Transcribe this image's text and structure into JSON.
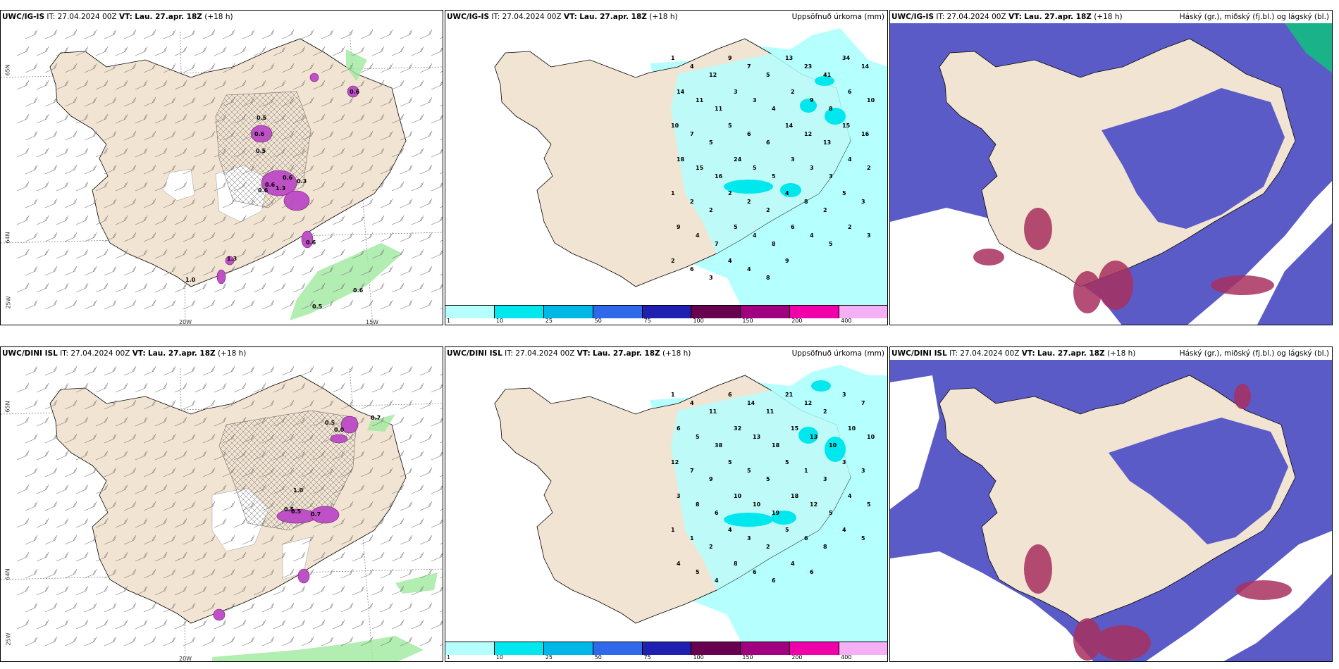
{
  "rows": [
    {
      "model": "UWC/IG-IS",
      "it_label": "IT:",
      "it_value": "27.04.2024 00Z",
      "vt_label": "VT:",
      "vt_value": "Lau. 27.apr. 18Z",
      "lead": "(+18 h)"
    },
    {
      "model": "UWC/DINI ISL",
      "it_label": "IT:",
      "it_value": "27.04.2024 00Z",
      "vt_label": "VT:",
      "vt_value": "Lau. 27.apr. 18Z",
      "lead": "(+18 h)"
    }
  ],
  "panel_titles": {
    "precip": "Uppsöfnuð úrkoma (mm)",
    "cloud": "Háský (gr.), miðský (fj.bl.) og lágský (bl.)"
  },
  "axis_labels": {
    "w20": "20W",
    "w15": "15W",
    "n65": "65N",
    "n64": "64N",
    "w25": "25W"
  },
  "colorbar": {
    "ticks": [
      "1",
      "10",
      "25",
      "50",
      "75",
      "100",
      "150",
      "200",
      "400"
    ],
    "colors": [
      "#b5ffff",
      "#00e8ee",
      "#00b8e8",
      "#2f68e8",
      "#2020b0",
      "#680050",
      "#a00080",
      "#f000a8",
      "#f5b0f5"
    ]
  },
  "precip_values_top": [
    "1",
    "4",
    "12",
    "9",
    "7",
    "5",
    "13",
    "23",
    "41",
    "34",
    "14",
    "14",
    "11",
    "11",
    "3",
    "3",
    "4",
    "2",
    "9",
    "8",
    "6",
    "10",
    "10",
    "7",
    "5",
    "5",
    "6",
    "6",
    "14",
    "12",
    "13",
    "15",
    "16",
    "18",
    "15",
    "16",
    "24",
    "5",
    "5",
    "3",
    "3",
    "3",
    "4",
    "2",
    "1",
    "2",
    "2",
    "2",
    "2",
    "2",
    "4",
    "8",
    "2",
    "5",
    "3",
    "9",
    "4",
    "7",
    "5",
    "4",
    "8",
    "6",
    "4",
    "5",
    "2",
    "3",
    "2",
    "6",
    "3",
    "4",
    "4",
    "8",
    "9"
  ],
  "precip_values_bottom": [
    "1",
    "4",
    "11",
    "6",
    "14",
    "11",
    "21",
    "12",
    "2",
    "3",
    "7",
    "6",
    "5",
    "38",
    "32",
    "13",
    "18",
    "15",
    "13",
    "10",
    "10",
    "10",
    "12",
    "7",
    "9",
    "5",
    "5",
    "5",
    "5",
    "1",
    "3",
    "3",
    "3",
    "3",
    "8",
    "6",
    "10",
    "10",
    "19",
    "18",
    "12",
    "5",
    "4",
    "5",
    "1",
    "1",
    "2",
    "4",
    "3",
    "2",
    "5",
    "6",
    "8",
    "4",
    "5",
    "4",
    "5",
    "4",
    "8",
    "6",
    "6",
    "4",
    "6"
  ],
  "wind_labels_top": [
    "0.6",
    "0.5",
    "0.6",
    "0.5",
    "1.3",
    "0.6",
    "0.6",
    "0.3",
    "1.3",
    "1.0",
    "0.6",
    "0.6",
    "0.5",
    "0.6"
  ],
  "wind_labels_bottom": [
    "0.7",
    "0.0",
    "0.5",
    "1.0",
    "0.5",
    "0.5",
    "0.7"
  ]
}
